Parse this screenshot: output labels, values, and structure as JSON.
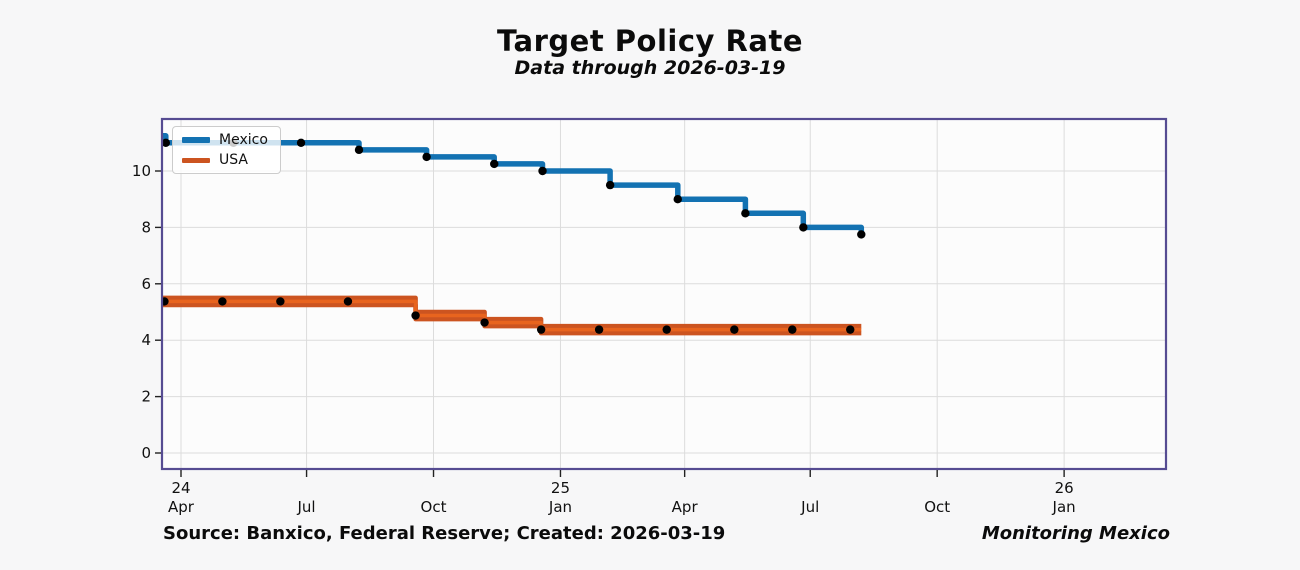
{
  "figure": {
    "title": "Target Policy Rate",
    "subtitle": "Data through 2026-03-19",
    "footer_left": "Source: Banxico, Federal Reserve; Created: 2026-03-19",
    "footer_right": "Monitoring Mexico"
  },
  "colors": {
    "figure_bg": "#f7f7f8",
    "plot_bg": "#fcfcfc",
    "plot_border": "#564c92",
    "grid": "#dcdcdc",
    "tick": "#222222",
    "tick_label": "#111111",
    "marker": "#000000",
    "mexico_line": "#1372b2",
    "usa_band": "#cc5420",
    "usa_mid": "#e8641e"
  },
  "chart_data": {
    "type": "line",
    "style": "steps-post with point markers",
    "title": "Target Policy Rate",
    "subtitle": "Data through 2026-03-19",
    "xlabel": "",
    "ylabel": "",
    "grid": true,
    "legend_position": "upper-left",
    "x_axis": {
      "range": [
        "2024-03-18",
        "2026-03-16"
      ],
      "ticks": [
        {
          "date": "2024-04-01",
          "month_label": "Apr",
          "year_label": "24"
        },
        {
          "date": "2024-07-01",
          "month_label": "Jul",
          "year_label": ""
        },
        {
          "date": "2024-10-01",
          "month_label": "Oct",
          "year_label": ""
        },
        {
          "date": "2025-01-01",
          "month_label": "Jan",
          "year_label": "25"
        },
        {
          "date": "2025-04-01",
          "month_label": "Apr",
          "year_label": ""
        },
        {
          "date": "2025-07-01",
          "month_label": "Jul",
          "year_label": ""
        },
        {
          "date": "2025-10-01",
          "month_label": "Oct",
          "year_label": ""
        },
        {
          "date": "2026-01-01",
          "month_label": "Jan",
          "year_label": "26"
        }
      ]
    },
    "y_axis": {
      "range": [
        -0.57,
        11.84
      ],
      "ticks": [
        0,
        2,
        4,
        6,
        8,
        10
      ]
    },
    "series": [
      {
        "name": "Mexico",
        "kind": "single-step-line",
        "start": {
          "date": "2024-03-18",
          "rate": 11.25
        },
        "points": [
          {
            "date": "2024-03-21",
            "rate": 11.0
          },
          {
            "date": "2024-05-09",
            "rate": 11.0
          },
          {
            "date": "2024-06-27",
            "rate": 11.0
          },
          {
            "date": "2024-08-08",
            "rate": 10.75
          },
          {
            "date": "2024-09-26",
            "rate": 10.5
          },
          {
            "date": "2024-11-14",
            "rate": 10.25
          },
          {
            "date": "2024-12-19",
            "rate": 10.0
          },
          {
            "date": "2025-02-06",
            "rate": 9.5
          },
          {
            "date": "2025-03-27",
            "rate": 9.0
          },
          {
            "date": "2025-05-15",
            "rate": 8.5
          },
          {
            "date": "2025-06-26",
            "rate": 8.0
          },
          {
            "date": "2025-08-07",
            "rate": 7.75
          }
        ],
        "end_date": "2025-08-07"
      },
      {
        "name": "USA",
        "kind": "target-range-band",
        "band_halfwidth": 0.125,
        "start": {
          "date": "2024-03-18",
          "rate": 5.375
        },
        "points": [
          {
            "date": "2024-03-20",
            "rate": 5.375
          },
          {
            "date": "2024-05-01",
            "rate": 5.375
          },
          {
            "date": "2024-06-12",
            "rate": 5.375
          },
          {
            "date": "2024-07-31",
            "rate": 5.375
          },
          {
            "date": "2024-09-18",
            "rate": 4.875
          },
          {
            "date": "2024-11-07",
            "rate": 4.625
          },
          {
            "date": "2024-12-18",
            "rate": 4.375
          },
          {
            "date": "2025-01-29",
            "rate": 4.375
          },
          {
            "date": "2025-03-19",
            "rate": 4.375
          },
          {
            "date": "2025-05-07",
            "rate": 4.375
          },
          {
            "date": "2025-06-18",
            "rate": 4.375
          },
          {
            "date": "2025-07-30",
            "rate": 4.375
          }
        ],
        "end_date": "2025-08-07"
      }
    ]
  }
}
